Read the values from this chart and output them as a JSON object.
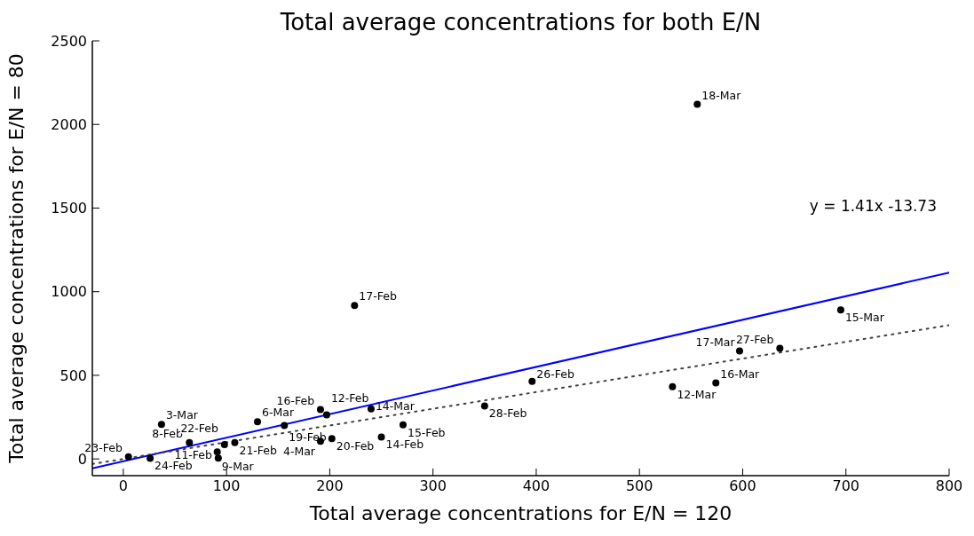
{
  "chart_data": {
    "type": "scatter",
    "title": "Total average concentrations for both E/N",
    "xlabel": "Total average concentrations for E/N = 120",
    "ylabel": "Total average concentrations for E/N = 80",
    "xlim": [
      -30,
      800
    ],
    "ylim": [
      -100,
      2500
    ],
    "xticks": [
      0,
      100,
      200,
      300,
      400,
      500,
      600,
      700,
      800
    ],
    "yticks": [
      0,
      500,
      1000,
      1500,
      2000,
      2500
    ],
    "grid": false,
    "legend": false,
    "series": [
      {
        "color": "#000000",
        "marker": "circle",
        "x": [
          556,
          224,
          695,
          597,
          636,
          532,
          574,
          396,
          350,
          37,
          130,
          156,
          191,
          197,
          240,
          271,
          250,
          202,
          191,
          64,
          108,
          98,
          5,
          26,
          91,
          92
        ],
        "values": [
          2120,
          918,
          891,
          645,
          661,
          432,
          454,
          464,
          317,
          206,
          222,
          200,
          295,
          264,
          299,
          204,
          131,
          122,
          105,
          97,
          97,
          86,
          13,
          4,
          42,
          5
        ]
      },
      {
        "type": "line",
        "color": "#0000ff",
        "line_style": "solid",
        "marker": "none",
        "x": [
          -30,
          800
        ],
        "values": [
          -56,
          1114
        ]
      },
      {
        "type": "line",
        "color": "#404040",
        "line_style": "dotted",
        "marker": "none",
        "x": [
          -30,
          800
        ],
        "values": [
          -30,
          800
        ]
      }
    ],
    "annotations": [
      {
        "text": "18-Mar",
        "x": 556,
        "y": 2120
      },
      {
        "text": "17-Feb",
        "x": 224,
        "y": 918
      },
      {
        "text": "15-Mar",
        "x": 695,
        "y": 891
      },
      {
        "text": "17-Mar",
        "x": 597,
        "y": 645
      },
      {
        "text": "27-Feb",
        "x": 636,
        "y": 661
      },
      {
        "text": "12-Mar",
        "x": 532,
        "y": 432
      },
      {
        "text": "16-Mar",
        "x": 574,
        "y": 454
      },
      {
        "text": "26-Feb",
        "x": 396,
        "y": 464
      },
      {
        "text": "28-Feb",
        "x": 350,
        "y": 317
      },
      {
        "text": "3-Mar",
        "x": 37,
        "y": 206
      },
      {
        "text": "6-Mar",
        "x": 130,
        "y": 222
      },
      {
        "text": "19-Feb",
        "x": 156,
        "y": 200
      },
      {
        "text": "16-Feb",
        "x": 191,
        "y": 295
      },
      {
        "text": "12-Feb",
        "x": 197,
        "y": 264
      },
      {
        "text": "14-Mar",
        "x": 240,
        "y": 299
      },
      {
        "text": "15-Feb",
        "x": 271,
        "y": 204
      },
      {
        "text": "14-Feb",
        "x": 250,
        "y": 131
      },
      {
        "text": "20-Feb",
        "x": 202,
        "y": 122
      },
      {
        "text": "4-Mar",
        "x": 191,
        "y": 105
      },
      {
        "text": "8-Feb",
        "x": 64,
        "y": 97
      },
      {
        "text": "21-Feb",
        "x": 108,
        "y": 97
      },
      {
        "text": "22-Feb",
        "x": 98,
        "y": 86
      },
      {
        "text": "23-Feb",
        "x": 5,
        "y": 13
      },
      {
        "text": "24-Feb",
        "x": 26,
        "y": 4
      },
      {
        "text": "9-Mar",
        "x": 91,
        "y": 42
      },
      {
        "text": "11-Feb",
        "x": 92,
        "y": 5
      },
      "y = 1.41x -13.73"
    ]
  }
}
